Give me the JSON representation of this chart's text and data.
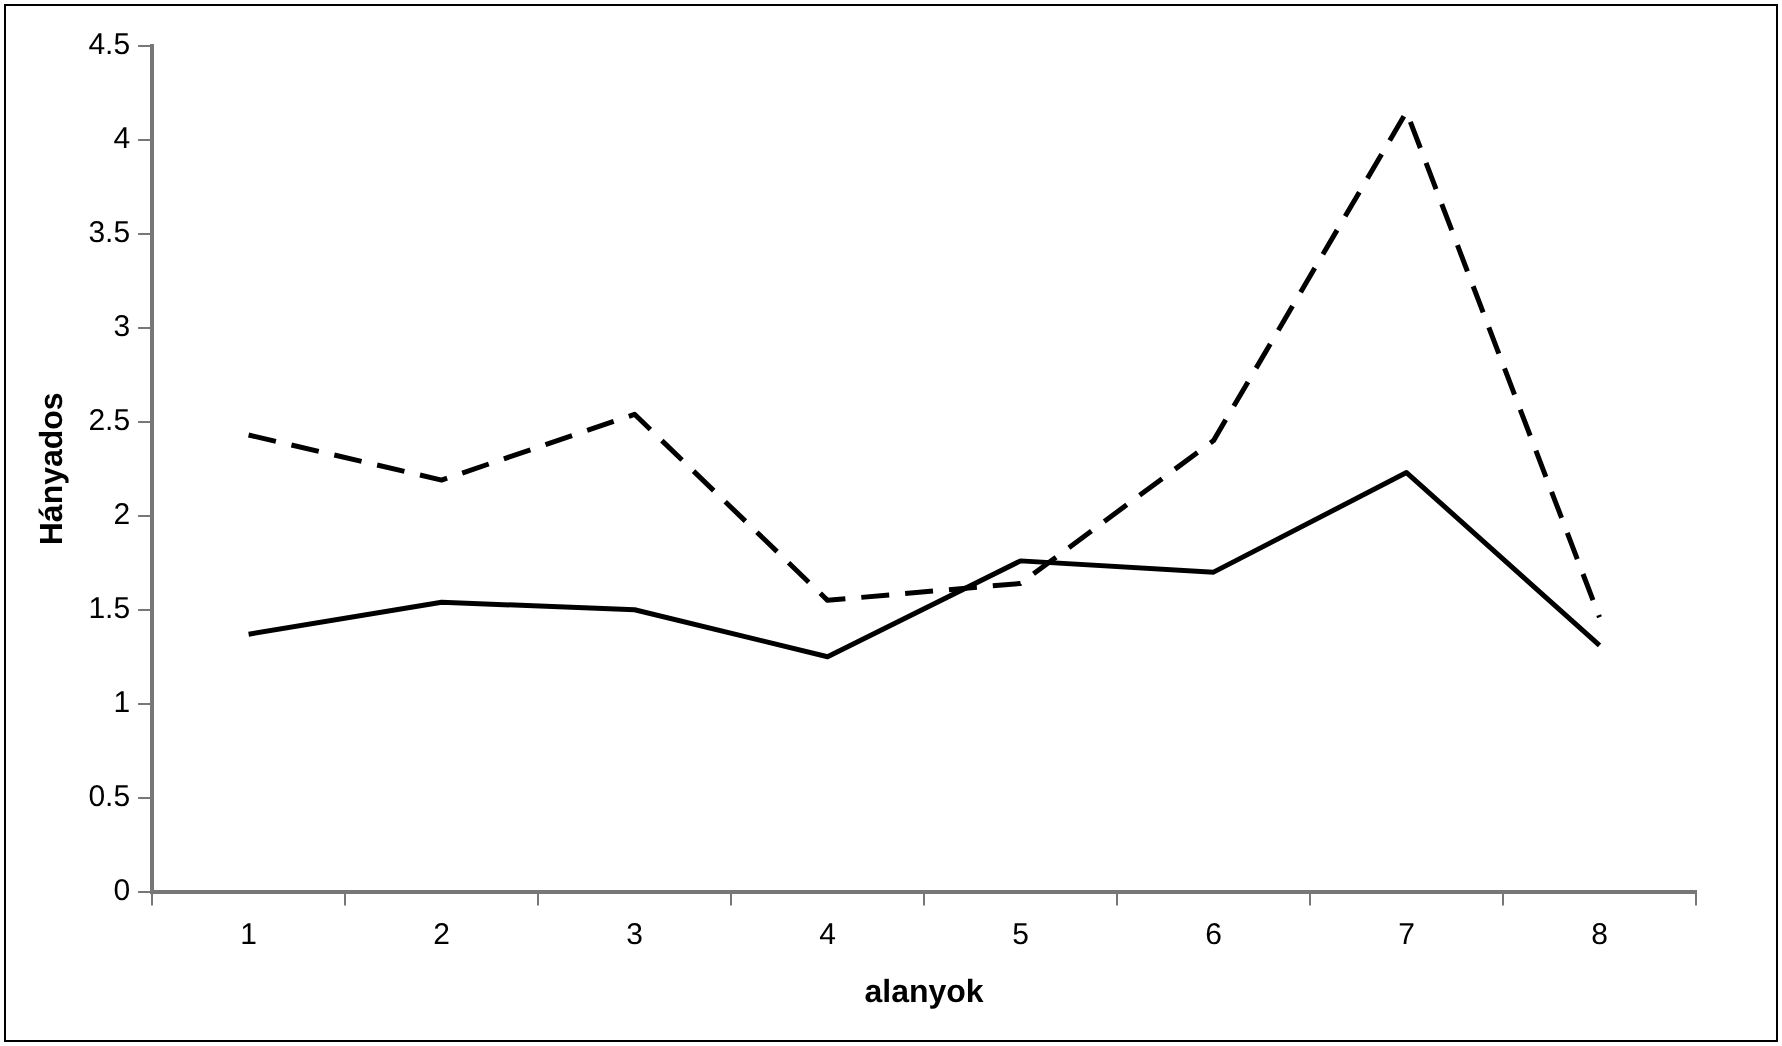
{
  "chart_data": {
    "type": "line",
    "xlabel": "alanyok",
    "ylabel": "Hányados",
    "categories": [
      "1",
      "2",
      "3",
      "4",
      "5",
      "6",
      "7",
      "8"
    ],
    "series": [
      {
        "color": "#000000",
        "line_style": "solid",
        "values": [
          1.37,
          1.54,
          1.5,
          1.25,
          1.76,
          1.7,
          2.23,
          1.31
        ]
      },
      {
        "color": "#000000",
        "line_style": "dashed",
        "values": [
          2.43,
          2.19,
          2.54,
          1.55,
          1.64,
          2.4,
          4.15,
          1.46
        ]
      }
    ],
    "ylim": [
      0,
      4.5
    ],
    "yticks": [
      0,
      0.5,
      1,
      1.5,
      2,
      2.5,
      3,
      3.5,
      4,
      4.5
    ],
    "grid": false,
    "legend": false,
    "marker": "none"
  }
}
